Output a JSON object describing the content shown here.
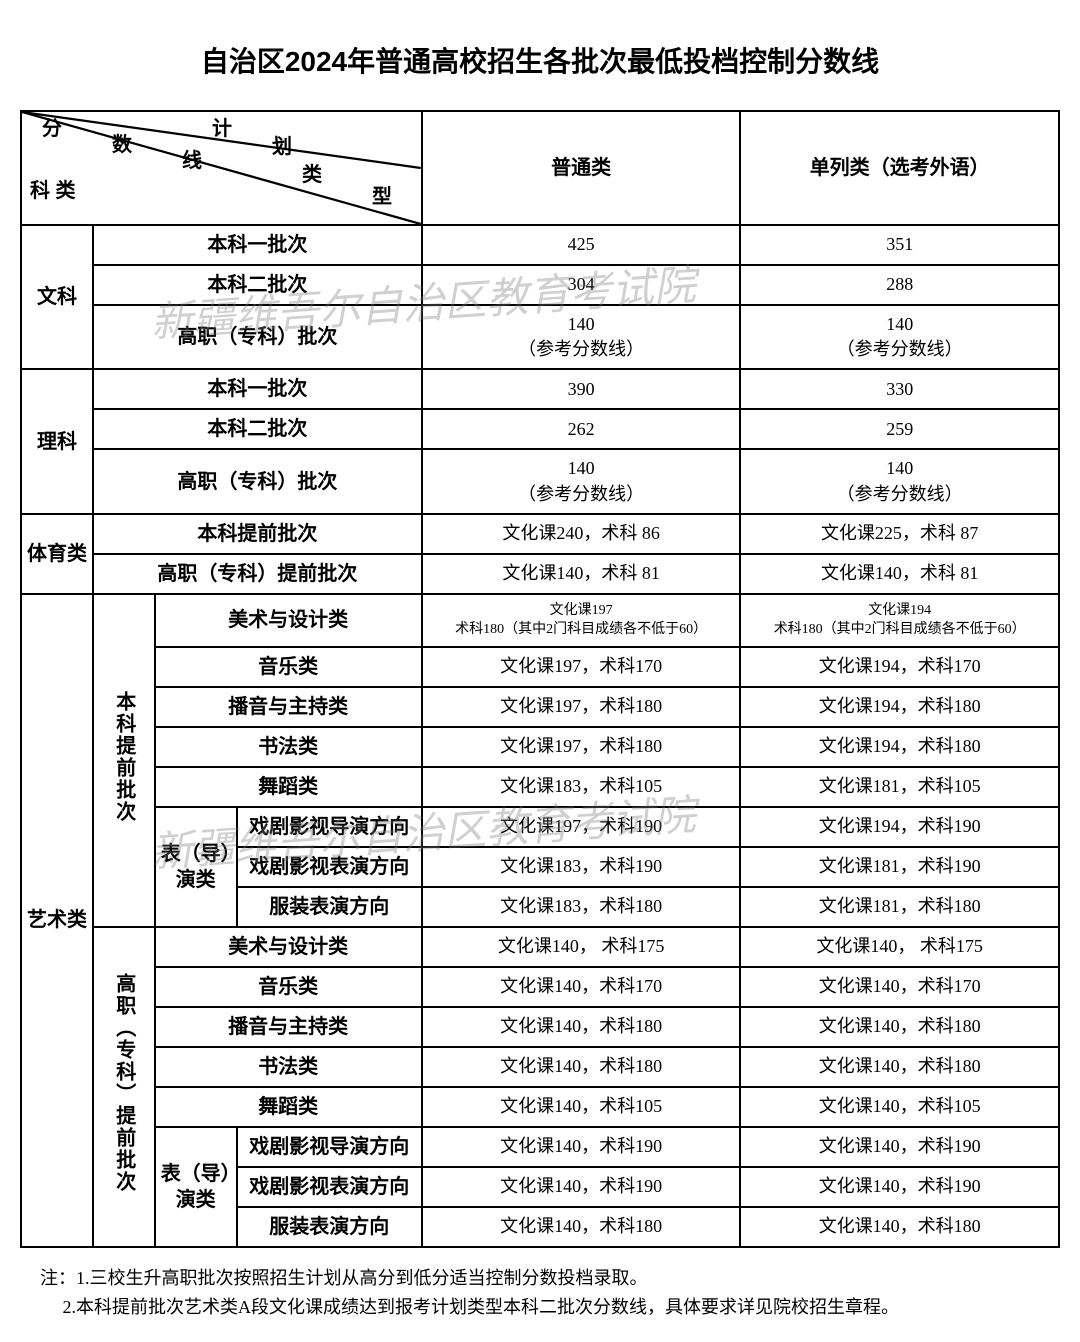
{
  "title": "自治区2024年普通高校招生各批次最低投档控制分数线",
  "watermark": "新疆维吾尔自治区教育考试院",
  "header": {
    "diag": {
      "a": "分",
      "b": "数",
      "c": "线",
      "d": "计",
      "e": "划",
      "f": "类",
      "g": "型",
      "h": "科 类"
    },
    "col1": "普通类",
    "col2": "单列类（选考外语）"
  },
  "cats": {
    "wen": "文科",
    "li": "理科",
    "ti": "体育类",
    "yi": "艺术类"
  },
  "batches": {
    "b1": "本科一批次",
    "b2": "本科二批次",
    "gz": "高职（专科）批次",
    "btq": "本科提前批次",
    "gztq": "高职（专科）提前批次",
    "bk_tq": "本科提前批次",
    "gz_tq": "高职（专科）提前批次"
  },
  "art_sub": {
    "meishu": "美术与设计类",
    "yinyue": "音乐类",
    "boyin": "播音与主持类",
    "shufa": "书法类",
    "wudao": "舞蹈类",
    "biaodao": "表（导）演类",
    "xiju_dy": "戏剧影视导演方向",
    "xiju_by": "戏剧影视表演方向",
    "fuzhuang": "服装表演方向"
  },
  "rows": {
    "wen_b1": {
      "c1": "425",
      "c2": "351"
    },
    "wen_b2": {
      "c1": "304",
      "c2": "288"
    },
    "wen_gz": {
      "c1": "140\n（参考分数线）",
      "c2": "140\n（参考分数线）"
    },
    "li_b1": {
      "c1": "390",
      "c2": "330"
    },
    "li_b2": {
      "c1": "262",
      "c2": "259"
    },
    "li_gz": {
      "c1": "140\n（参考分数线）",
      "c2": "140\n（参考分数线）"
    },
    "ti_bk": {
      "c1": "文化课240，术科 86",
      "c2": "文化课225，术科 87"
    },
    "ti_gz": {
      "c1": "文化课140，术科 81",
      "c2": "文化课140，术科 81"
    },
    "yi_bk_meishu": {
      "c1": "文化课197\n术科180（其中2门科目成绩各不低于60）",
      "c2": "文化课194\n术科180（其中2门科目成绩各不低于60）"
    },
    "yi_bk_yinyue": {
      "c1": "文化课197，术科170",
      "c2": "文化课194，术科170"
    },
    "yi_bk_boyin": {
      "c1": "文化课197，术科180",
      "c2": "文化课194，术科180"
    },
    "yi_bk_shufa": {
      "c1": "文化课197，术科180",
      "c2": "文化课194，术科180"
    },
    "yi_bk_wudao": {
      "c1": "文化课183，术科105",
      "c2": "文化课181，术科105"
    },
    "yi_bk_xjdy": {
      "c1": "文化课197，术科190",
      "c2": "文化课194，术科190"
    },
    "yi_bk_xjby": {
      "c1": "文化课183，术科190",
      "c2": "文化课181，术科190"
    },
    "yi_bk_fz": {
      "c1": "文化课183，术科180",
      "c2": "文化课181，术科180"
    },
    "yi_gz_meishu": {
      "c1": "文化课140， 术科175",
      "c2": "文化课140， 术科175"
    },
    "yi_gz_yinyue": {
      "c1": "文化课140，术科170",
      "c2": "文化课140，术科170"
    },
    "yi_gz_boyin": {
      "c1": "文化课140，术科180",
      "c2": "文化课140，术科180"
    },
    "yi_gz_shufa": {
      "c1": "文化课140，术科180",
      "c2": "文化课140，术科180"
    },
    "yi_gz_wudao": {
      "c1": "文化课140，术科105",
      "c2": "文化课140，术科105"
    },
    "yi_gz_xjdy": {
      "c1": "文化课140，术科190",
      "c2": "文化课140，术科190"
    },
    "yi_gz_xjby": {
      "c1": "文化课140，术科190",
      "c2": "文化课140，术科190"
    },
    "yi_gz_fz": {
      "c1": "文化课140，术科180",
      "c2": "文化课140，术科180"
    }
  },
  "notes": {
    "prefix": "注：",
    "n1": "1.三校生升高职批次按照招生计划从高分到低分适当控制分数投档录取。",
    "n2": "2.本科提前批次艺术类A段文化课成绩达到报考计划类型本科二批次分数线，具体要求详见院校招生章程。"
  }
}
